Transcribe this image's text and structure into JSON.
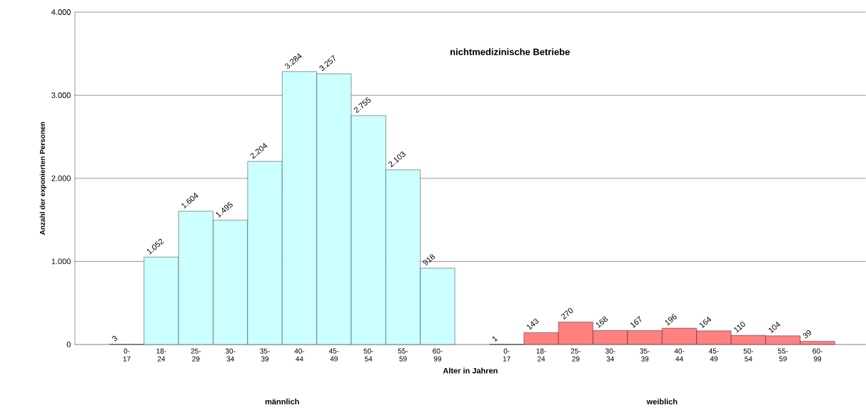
{
  "chart_data": {
    "type": "bar",
    "title": "nichtmedizinische Betriebe",
    "xlabel": "Alter in Jahren",
    "ylabel": "Anzahl der exponierten Personen",
    "categories": [
      "0-17",
      "18-24",
      "25-29",
      "30-34",
      "35-39",
      "40-44",
      "45-49",
      "50-54",
      "55-59",
      "60-99",
      null,
      "0-17",
      "18-24",
      "25-29",
      "30-34",
      "35-39",
      "40-44",
      "45-49",
      "50-54",
      "55-59",
      "60-99"
    ],
    "values": [
      3,
      1052,
      1604,
      1495,
      2204,
      3284,
      3257,
      2755,
      2103,
      918,
      null,
      1,
      143,
      270,
      168,
      167,
      196,
      164,
      110,
      104,
      39
    ],
    "value_labels": [
      "3",
      "1.052",
      "1.604",
      "1.495",
      "2.204",
      "3.284",
      "3.257",
      "2.755",
      "2.103",
      "918",
      null,
      "1",
      "143",
      "270",
      "168",
      "167",
      "196",
      "164",
      "110",
      "104",
      "39"
    ],
    "colors": [
      "#ccffff",
      "#ccffff",
      "#ccffff",
      "#ccffff",
      "#ccffff",
      "#ccffff",
      "#ccffff",
      "#ccffff",
      "#ccffff",
      "#ccffff",
      null,
      "#ff8080",
      "#ff8080",
      "#ff8080",
      "#ff8080",
      "#ff8080",
      "#ff8080",
      "#ff8080",
      "#ff8080",
      "#ff8080",
      "#ff8080"
    ],
    "ylim": [
      0,
      4000
    ],
    "yticks": [
      {
        "value": 0,
        "label": "0"
      },
      {
        "value": 1000,
        "label": "1.000"
      },
      {
        "value": 2000,
        "label": "2.000"
      },
      {
        "value": 3000,
        "label": "3.000"
      },
      {
        "value": 4000,
        "label": "4.000"
      }
    ],
    "grid": "y",
    "annotations": [
      "männlich",
      "weiblich"
    ]
  }
}
